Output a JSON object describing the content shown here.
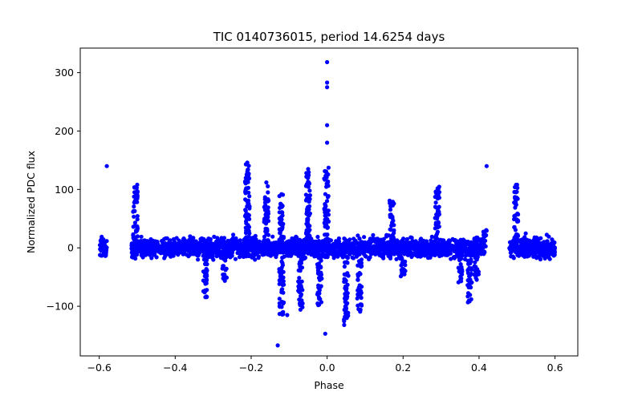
{
  "chart_data": {
    "type": "scatter",
    "title": "TIC 0140736015, period 14.6254 days",
    "xlabel": "Phase",
    "ylabel": "Normalized PDC flux",
    "xlim": [
      -0.65,
      0.66
    ],
    "ylim": [
      -185,
      342
    ],
    "xticks": [
      -0.6,
      -0.4,
      -0.2,
      0.0,
      0.2,
      0.4,
      0.6
    ],
    "xtick_labels": [
      "−0.6",
      "−0.4",
      "−0.2",
      "0.0",
      "0.2",
      "0.4",
      "0.6"
    ],
    "yticks": [
      -100,
      0,
      100,
      200,
      300
    ],
    "ytick_labels": [
      "−100",
      "0",
      "100",
      "200",
      "300"
    ],
    "grid": false,
    "color": "#0000ff",
    "series": [
      {
        "name": "flux",
        "outliers": [
          [
            -0.58,
            140
          ],
          [
            0.42,
            140
          ],
          [
            0.0,
            318
          ],
          [
            0.0,
            283
          ],
          [
            0.0,
            275
          ],
          [
            0.0,
            210
          ],
          [
            0.0,
            180
          ],
          [
            -0.13,
            -167
          ],
          [
            -0.005,
            -147
          ],
          [
            0.045,
            -132
          ],
          [
            -0.21,
            146
          ],
          [
            -0.21,
            130
          ],
          [
            -0.16,
            112
          ],
          [
            -0.05,
            135
          ],
          [
            -0.12,
            92
          ],
          [
            -0.105,
            -115
          ],
          [
            0.5,
            108
          ],
          [
            -0.5,
            108
          ]
        ],
        "clusters": [
          {
            "x": [
              -0.6,
              -0.58
            ],
            "y_spread": 14
          },
          {
            "x": [
              -0.515,
              0.415
            ],
            "y_spread": 13
          },
          {
            "x": [
              0.48,
              0.6
            ],
            "y_spread": 14
          }
        ],
        "features": [
          {
            "x": -0.505,
            "y": [
              0,
              105
            ]
          },
          {
            "x": 0.497,
            "y": [
              0,
              108
            ]
          },
          {
            "x": 0.415,
            "y": [
              0,
              35
            ]
          },
          {
            "x": -0.002,
            "y": [
              0,
              140
            ]
          },
          {
            "x": -0.21,
            "y": [
              0,
              145
            ]
          },
          {
            "x": -0.16,
            "y": [
              0,
              110
            ]
          },
          {
            "x": -0.05,
            "y": [
              0,
              132
            ]
          },
          {
            "x": -0.12,
            "y": [
              0,
              92
            ]
          },
          {
            "x": 0.29,
            "y": [
              0,
              105
            ]
          },
          {
            "x": 0.17,
            "y": [
              0,
              82
            ]
          },
          {
            "x": 0.35,
            "y": [
              -60,
              0
            ]
          },
          {
            "x": 0.375,
            "y": [
              -98,
              -20
            ]
          },
          {
            "x": 0.393,
            "y": [
              -55,
              0
            ]
          },
          {
            "x": -0.12,
            "y": [
              -115,
              -20
            ]
          },
          {
            "x": -0.07,
            "y": [
              -110,
              -10
            ]
          },
          {
            "x": -0.02,
            "y": [
              -100,
              -10
            ]
          },
          {
            "x": 0.05,
            "y": [
              -130,
              -20
            ]
          },
          {
            "x": 0.085,
            "y": [
              -110,
              -20
            ]
          },
          {
            "x": -0.32,
            "y": [
              -85,
              -10
            ]
          },
          {
            "x": -0.27,
            "y": [
              -60,
              0
            ]
          },
          {
            "x": 0.2,
            "y": [
              -55,
              0
            ]
          }
        ]
      }
    ]
  }
}
